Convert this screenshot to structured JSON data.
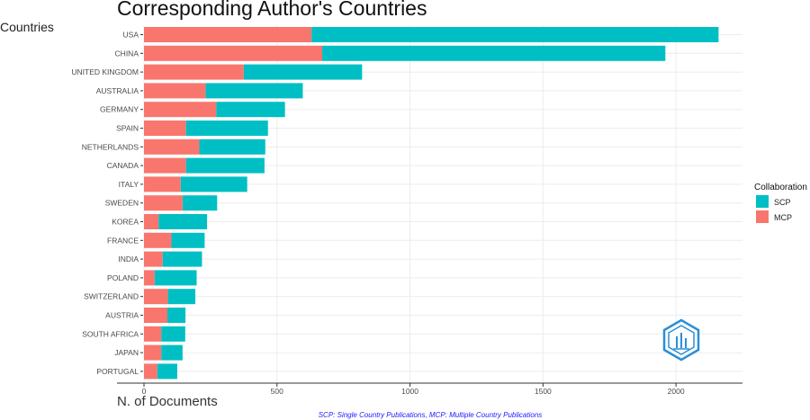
{
  "colors": {
    "scp": "#00BFC4",
    "mcp": "#F8766D",
    "logo": "#2b8fd6"
  },
  "chart_data": {
    "type": "bar",
    "orientation": "horizontal",
    "stacked": true,
    "title": "Corresponding Author's Countries",
    "xlabel": "N. of Documents",
    "ylabel": "Countries",
    "xlim": [
      0,
      2250
    ],
    "xticks": [
      0,
      500,
      1000,
      1500,
      2000
    ],
    "grid": true,
    "legend": {
      "title": "Collaboration",
      "position": "right"
    },
    "categories": [
      "USA",
      "CHINA",
      "UNITED KINGDOM",
      "AUSTRALIA",
      "GERMANY",
      "SPAIN",
      "NETHERLANDS",
      "CANADA",
      "ITALY",
      "SWEDEN",
      "KOREA",
      "FRANCE",
      "INDIA",
      "POLAND",
      "SWITZERLAND",
      "AUSTRIA",
      "SOUTH AFRICA",
      "JAPAN",
      "PORTUGAL"
    ],
    "series": [
      {
        "name": "SCP",
        "values": [
          1530,
          1290,
          445,
          365,
          258,
          308,
          248,
          295,
          250,
          130,
          182,
          125,
          148,
          158,
          103,
          68,
          90,
          80,
          75
        ]
      },
      {
        "name": "MCP",
        "values": [
          630,
          670,
          375,
          232,
          272,
          158,
          208,
          158,
          138,
          145,
          55,
          103,
          70,
          40,
          90,
          88,
          65,
          65,
          50
        ]
      }
    ],
    "footnote": "SCP: Single Country Publications, MCP: Multiple Country Publications"
  }
}
